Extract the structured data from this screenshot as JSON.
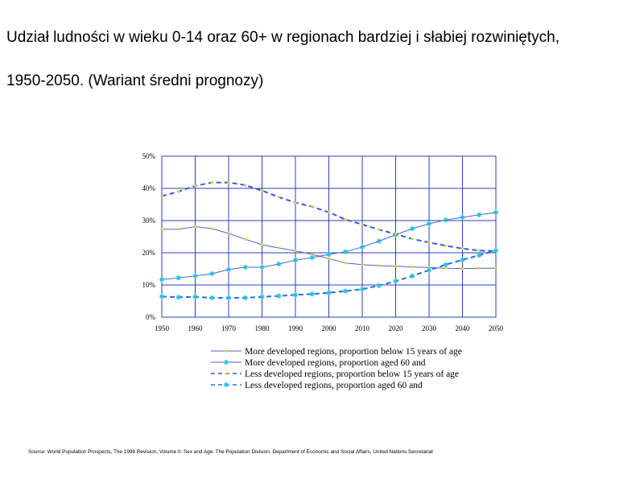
{
  "title_line1": "Udział ludności w wieku 0-14 oraz 60+ w regionach bardziej i słabiej rozwiniętych,",
  "title_line2": "1950-2050. (Wariant średni  prognozy)",
  "source": "Source: World Population Prospects, The 1998 Revision, Volume II: Sex and Age. The Population Division, Department of Economic and Social Affairs, United Nations Secretariat",
  "chart_data": {
    "type": "line",
    "x": [
      1950,
      1955,
      1960,
      1965,
      1970,
      1975,
      1980,
      1985,
      1990,
      1995,
      2000,
      2005,
      2010,
      2015,
      2020,
      2025,
      2030,
      2035,
      2040,
      2045,
      2050
    ],
    "xticks": [
      "1950",
      "1960",
      "1970",
      "1980",
      "1990",
      "2000",
      "2010",
      "2020",
      "2030",
      "2040",
      "2050"
    ],
    "yticks": [
      "0%",
      "10%",
      "20%",
      "30%",
      "40%",
      "50%"
    ],
    "ylim": [
      0,
      50
    ],
    "grid": true,
    "legend_position": "bottom",
    "series": [
      {
        "name": "More developed regions, proportion below 15 years of age",
        "color": "#4a62c8",
        "marker_color": "#e8d020",
        "dash": "solid",
        "marker": "dot",
        "values": [
          27.3,
          27.3,
          28.1,
          27.5,
          26.0,
          24.2,
          22.5,
          21.5,
          20.6,
          19.5,
          18.2,
          16.8,
          16.3,
          16.0,
          15.8,
          15.6,
          15.4,
          15.2,
          15.1,
          15.2,
          15.2
        ]
      },
      {
        "name": "More developed regions, proportion aged 60 and",
        "color": "#4a62c8",
        "marker_color": "#20c0e0",
        "dash": "solid",
        "marker": "star",
        "values": [
          11.7,
          12.2,
          12.8,
          13.5,
          14.8,
          15.5,
          15.5,
          16.5,
          17.7,
          18.5,
          19.5,
          20.3,
          21.8,
          23.6,
          25.6,
          27.5,
          29.0,
          30.2,
          31.0,
          31.8,
          32.5
        ]
      },
      {
        "name": "Less developed regions, proportion below 15 years of age",
        "color": "#3a5ad8",
        "marker_color": "#e8d020",
        "dash": "dashed",
        "marker": "dot",
        "values": [
          37.6,
          39.0,
          40.8,
          41.8,
          41.8,
          41.0,
          39.3,
          37.3,
          35.6,
          34.3,
          32.6,
          30.3,
          28.8,
          27.2,
          25.8,
          24.3,
          23.2,
          22.2,
          21.3,
          20.7,
          20.5
        ]
      },
      {
        "name": "Less developed regions, proportion aged 60 and",
        "color": "#2a6be8",
        "marker_color": "#20c0e0",
        "dash": "dashed",
        "marker": "star",
        "values": [
          6.4,
          6.2,
          6.3,
          6.0,
          6.0,
          6.0,
          6.3,
          6.6,
          6.9,
          7.2,
          7.6,
          8.1,
          8.7,
          9.8,
          11.2,
          12.8,
          14.6,
          16.3,
          17.8,
          19.2,
          20.7
        ]
      }
    ]
  }
}
